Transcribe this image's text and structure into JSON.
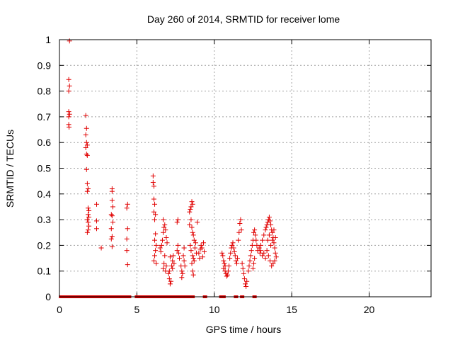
{
  "chart_data": {
    "type": "scatter",
    "title": "Day 260 of 2014, SRMTID for receiver lome",
    "xlabel": "GPS time / hours",
    "ylabel": "SRMTID / TECUs",
    "xlim": [
      0,
      24
    ],
    "ylim": [
      0,
      1
    ],
    "xticks": [
      "0",
      "5",
      "10",
      "15",
      "20"
    ],
    "yticks": [
      "0",
      "0.1",
      "0.2",
      "0.3",
      "0.4",
      "0.5",
      "0.6",
      "0.7",
      "0.8",
      "0.9",
      "1"
    ],
    "grid": true,
    "marker": "plus",
    "color": "#e00000",
    "points": [
      [
        0.65,
        0.995
      ],
      [
        0.6,
        0.845
      ],
      [
        0.65,
        0.82
      ],
      [
        0.6,
        0.8
      ],
      [
        0.6,
        0.72
      ],
      [
        0.65,
        0.71
      ],
      [
        0.6,
        0.7
      ],
      [
        0.6,
        0.67
      ],
      [
        0.62,
        0.66
      ],
      [
        1.7,
        0.705
      ],
      [
        1.75,
        0.655
      ],
      [
        1.7,
        0.63
      ],
      [
        1.75,
        0.6
      ],
      [
        1.8,
        0.59
      ],
      [
        1.7,
        0.58
      ],
      [
        1.75,
        0.555
      ],
      [
        1.8,
        0.55
      ],
      [
        1.75,
        0.495
      ],
      [
        1.8,
        0.44
      ],
      [
        1.85,
        0.42
      ],
      [
        1.8,
        0.41
      ],
      [
        1.85,
        0.345
      ],
      [
        1.9,
        0.335
      ],
      [
        1.85,
        0.32
      ],
      [
        1.9,
        0.31
      ],
      [
        1.8,
        0.3
      ],
      [
        1.85,
        0.29
      ],
      [
        1.9,
        0.275
      ],
      [
        1.85,
        0.26
      ],
      [
        1.8,
        0.25
      ],
      [
        2.4,
        0.36
      ],
      [
        2.4,
        0.295
      ],
      [
        2.4,
        0.265
      ],
      [
        2.7,
        0.19
      ],
      [
        3.4,
        0.42
      ],
      [
        3.4,
        0.41
      ],
      [
        3.4,
        0.375
      ],
      [
        3.45,
        0.35
      ],
      [
        3.35,
        0.32
      ],
      [
        3.4,
        0.315
      ],
      [
        3.45,
        0.29
      ],
      [
        3.35,
        0.265
      ],
      [
        3.4,
        0.235
      ],
      [
        3.35,
        0.225
      ],
      [
        3.4,
        0.195
      ],
      [
        4.4,
        0.36
      ],
      [
        4.35,
        0.345
      ],
      [
        4.4,
        0.265
      ],
      [
        4.35,
        0.225
      ],
      [
        4.35,
        0.18
      ],
      [
        4.4,
        0.125
      ],
      [
        6.05,
        0.47
      ],
      [
        6.05,
        0.445
      ],
      [
        6.1,
        0.43
      ],
      [
        6.1,
        0.38
      ],
      [
        6.15,
        0.36
      ],
      [
        6.1,
        0.33
      ],
      [
        6.2,
        0.32
      ],
      [
        6.15,
        0.3
      ],
      [
        6.2,
        0.245
      ],
      [
        6.15,
        0.22
      ],
      [
        6.25,
        0.2
      ],
      [
        6.2,
        0.18
      ],
      [
        6.15,
        0.16
      ],
      [
        6.1,
        0.14
      ],
      [
        6.25,
        0.13
      ],
      [
        6.5,
        0.19
      ],
      [
        6.55,
        0.175
      ],
      [
        6.6,
        0.2
      ],
      [
        6.65,
        0.22
      ],
      [
        6.7,
        0.25
      ],
      [
        6.75,
        0.27
      ],
      [
        6.8,
        0.28
      ],
      [
        6.7,
        0.3
      ],
      [
        6.85,
        0.26
      ],
      [
        6.9,
        0.23
      ],
      [
        6.95,
        0.21
      ],
      [
        6.8,
        0.16
      ],
      [
        6.75,
        0.13
      ],
      [
        6.7,
        0.11
      ],
      [
        6.85,
        0.1
      ],
      [
        6.9,
        0.12
      ],
      [
        7.05,
        0.09
      ],
      [
        7.1,
        0.07
      ],
      [
        7.15,
        0.05
      ],
      [
        7.2,
        0.06
      ],
      [
        7.1,
        0.1
      ],
      [
        7.25,
        0.12
      ],
      [
        7.3,
        0.14
      ],
      [
        7.15,
        0.155
      ],
      [
        7.35,
        0.16
      ],
      [
        7.4,
        0.13
      ],
      [
        7.3,
        0.11
      ],
      [
        7.6,
        0.29
      ],
      [
        7.65,
        0.3
      ],
      [
        7.6,
        0.18
      ],
      [
        7.65,
        0.2
      ],
      [
        7.7,
        0.17
      ],
      [
        7.75,
        0.15
      ],
      [
        7.85,
        0.12
      ],
      [
        7.9,
        0.1
      ],
      [
        7.95,
        0.09
      ],
      [
        7.9,
        0.075
      ],
      [
        8.0,
        0.16
      ],
      [
        8.05,
        0.14
      ],
      [
        8.1,
        0.12
      ],
      [
        8.05,
        0.19
      ],
      [
        8.4,
        0.33
      ],
      [
        8.45,
        0.34
      ],
      [
        8.5,
        0.35
      ],
      [
        8.55,
        0.37
      ],
      [
        8.6,
        0.36
      ],
      [
        8.5,
        0.3
      ],
      [
        8.4,
        0.28
      ],
      [
        8.55,
        0.27
      ],
      [
        8.6,
        0.25
      ],
      [
        8.65,
        0.24
      ],
      [
        8.7,
        0.22
      ],
      [
        8.45,
        0.2
      ],
      [
        8.5,
        0.18
      ],
      [
        8.6,
        0.16
      ],
      [
        8.65,
        0.15
      ],
      [
        8.7,
        0.14
      ],
      [
        8.55,
        0.13
      ],
      [
        8.6,
        0.1
      ],
      [
        8.65,
        0.085
      ],
      [
        8.75,
        0.19
      ],
      [
        8.8,
        0.21
      ],
      [
        8.85,
        0.17
      ],
      [
        8.9,
        0.29
      ],
      [
        9.0,
        0.17
      ],
      [
        9.1,
        0.185
      ],
      [
        9.15,
        0.2
      ],
      [
        9.2,
        0.19
      ],
      [
        9.3,
        0.21
      ],
      [
        9.35,
        0.175
      ],
      [
        9.25,
        0.155
      ],
      [
        9.05,
        0.15
      ],
      [
        10.5,
        0.17
      ],
      [
        10.55,
        0.16
      ],
      [
        10.6,
        0.14
      ],
      [
        10.65,
        0.13
      ],
      [
        10.7,
        0.12
      ],
      [
        10.6,
        0.11
      ],
      [
        10.7,
        0.1
      ],
      [
        10.75,
        0.09
      ],
      [
        10.8,
        0.08
      ],
      [
        10.85,
        0.085
      ],
      [
        10.9,
        0.1
      ],
      [
        10.95,
        0.12
      ],
      [
        11.0,
        0.15
      ],
      [
        11.05,
        0.17
      ],
      [
        11.1,
        0.19
      ],
      [
        11.15,
        0.2
      ],
      [
        11.2,
        0.21
      ],
      [
        11.25,
        0.19
      ],
      [
        11.3,
        0.175
      ],
      [
        11.35,
        0.16
      ],
      [
        11.4,
        0.14
      ],
      [
        11.45,
        0.13
      ],
      [
        11.5,
        0.15
      ],
      [
        11.55,
        0.22
      ],
      [
        11.6,
        0.25
      ],
      [
        11.65,
        0.285
      ],
      [
        11.7,
        0.3
      ],
      [
        11.75,
        0.26
      ],
      [
        11.8,
        0.13
      ],
      [
        11.85,
        0.11
      ],
      [
        11.9,
        0.09
      ],
      [
        11.95,
        0.07
      ],
      [
        12.0,
        0.05
      ],
      [
        12.05,
        0.04
      ],
      [
        12.1,
        0.06
      ],
      [
        12.2,
        0.1
      ],
      [
        12.25,
        0.12
      ],
      [
        12.3,
        0.14
      ],
      [
        12.35,
        0.16
      ],
      [
        12.4,
        0.18
      ],
      [
        12.45,
        0.2
      ],
      [
        12.5,
        0.22
      ],
      [
        12.55,
        0.25
      ],
      [
        12.6,
        0.26
      ],
      [
        12.65,
        0.24
      ],
      [
        12.7,
        0.22
      ],
      [
        12.75,
        0.2
      ],
      [
        12.6,
        0.15
      ],
      [
        12.55,
        0.13
      ],
      [
        12.5,
        0.11
      ],
      [
        12.8,
        0.18
      ],
      [
        12.9,
        0.19
      ],
      [
        13.0,
        0.2
      ],
      [
        13.1,
        0.22
      ],
      [
        13.2,
        0.24
      ],
      [
        13.3,
        0.26
      ],
      [
        13.35,
        0.27
      ],
      [
        13.4,
        0.28
      ],
      [
        13.45,
        0.29
      ],
      [
        13.5,
        0.3
      ],
      [
        13.55,
        0.31
      ],
      [
        13.6,
        0.295
      ],
      [
        13.65,
        0.28
      ],
      [
        13.7,
        0.26
      ],
      [
        13.75,
        0.25
      ],
      [
        13.8,
        0.23
      ],
      [
        13.85,
        0.21
      ],
      [
        13.9,
        0.19
      ],
      [
        13.95,
        0.17
      ],
      [
        14.0,
        0.155
      ],
      [
        13.9,
        0.14
      ],
      [
        13.8,
        0.13
      ],
      [
        13.7,
        0.12
      ],
      [
        13.6,
        0.14
      ],
      [
        13.5,
        0.16
      ],
      [
        13.4,
        0.18
      ],
      [
        13.3,
        0.15
      ],
      [
        13.2,
        0.17
      ],
      [
        13.1,
        0.16
      ],
      [
        13.0,
        0.18
      ],
      [
        12.95,
        0.17
      ],
      [
        13.45,
        0.22
      ],
      [
        13.55,
        0.24
      ],
      [
        13.65,
        0.2
      ],
      [
        13.75,
        0.22
      ],
      [
        13.85,
        0.26
      ],
      [
        13.95,
        0.23
      ]
    ],
    "zero_points": [
      0.1,
      0.2,
      0.3,
      0.45,
      0.6,
      0.7,
      0.8,
      0.95,
      1.1,
      1.2,
      1.4,
      1.55,
      1.65,
      1.8,
      2.0,
      2.2,
      2.35,
      2.5,
      2.6,
      2.75,
      2.9,
      3.0,
      3.15,
      3.3,
      3.45,
      3.6,
      3.75,
      3.9,
      4.05,
      4.2,
      4.35,
      4.5,
      5.0,
      5.15,
      5.3,
      5.45,
      5.6,
      5.8,
      6.0,
      6.15,
      6.3,
      6.5,
      6.65,
      6.8,
      7.0,
      7.2,
      7.35,
      7.5,
      7.7,
      7.85,
      8.0,
      8.15,
      8.3,
      8.45,
      8.6,
      9.4,
      10.45,
      10.6,
      11.4,
      11.8,
      12.6
    ]
  }
}
